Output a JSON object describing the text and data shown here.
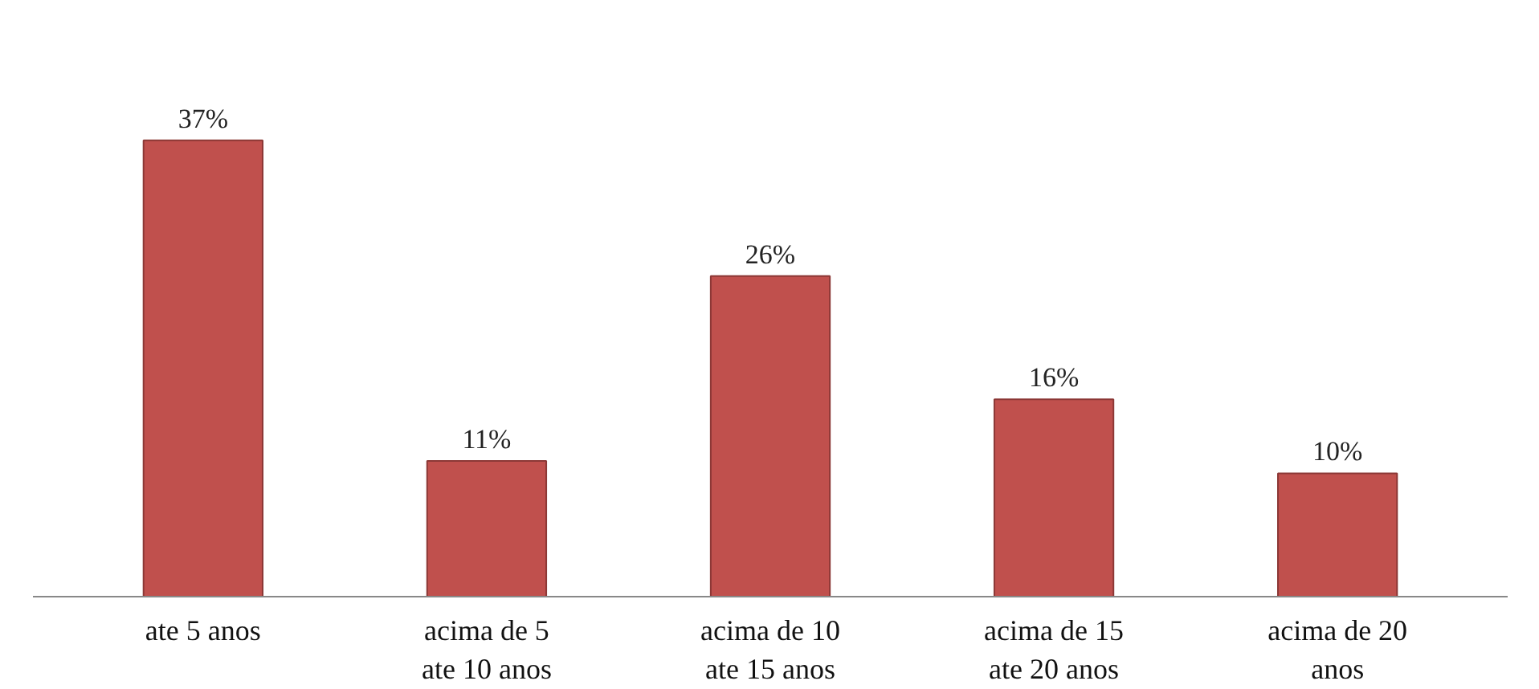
{
  "chart_data": {
    "type": "bar",
    "categories": [
      "ate 5 anos",
      "acima de 5 ate 10 anos",
      "acima de 10 ate 15 anos",
      "acima de 15 ate 20 anos",
      "acima de 20 anos"
    ],
    "values": [
      37,
      11,
      26,
      16,
      10
    ],
    "value_labels": [
      "37%",
      "11%",
      "26%",
      "16%",
      "10%"
    ],
    "color": "#c0504d",
    "grid": false
  }
}
